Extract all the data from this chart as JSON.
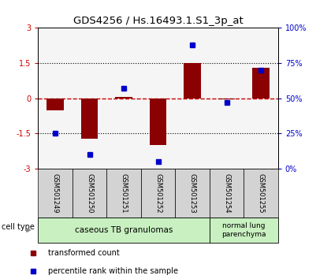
{
  "title": "GDS4256 / Hs.16493.1.S1_3p_at",
  "samples": [
    "GSM501249",
    "GSM501250",
    "GSM501251",
    "GSM501252",
    "GSM501253",
    "GSM501254",
    "GSM501255"
  ],
  "red_values": [
    -0.5,
    -1.72,
    0.05,
    -2.0,
    1.5,
    -0.05,
    1.3
  ],
  "blue_percentiles": [
    25,
    10,
    57,
    5,
    88,
    47,
    70
  ],
  "ylim_left": [
    -3,
    3
  ],
  "ylim_right": [
    0,
    100
  ],
  "yticks_left": [
    -3,
    -1.5,
    0,
    1.5,
    3
  ],
  "yticks_left_labels": [
    "-3",
    "-1.5",
    "0",
    "1.5",
    "3"
  ],
  "yticks_right": [
    0,
    25,
    50,
    75,
    100
  ],
  "yticks_right_labels": [
    "0%",
    "25%",
    "50%",
    "75%",
    "100%"
  ],
  "bar_color": "#8b0000",
  "dot_color": "#0000cc",
  "bg_color": "#ffffff",
  "zero_line_color": "#cc0000",
  "dotted_line_color": "#000000",
  "ax_bg_color": "#f5f5f5",
  "sample_box_color": "#d3d3d3",
  "group1_label": "caseous TB granulomas",
  "group2_label": "normal lung\nparenchyma",
  "group_color": "#c8f0c0",
  "legend_red_label": "transformed count",
  "legend_blue_label": "percentile rank within the sample",
  "cell_type_label": "cell type"
}
